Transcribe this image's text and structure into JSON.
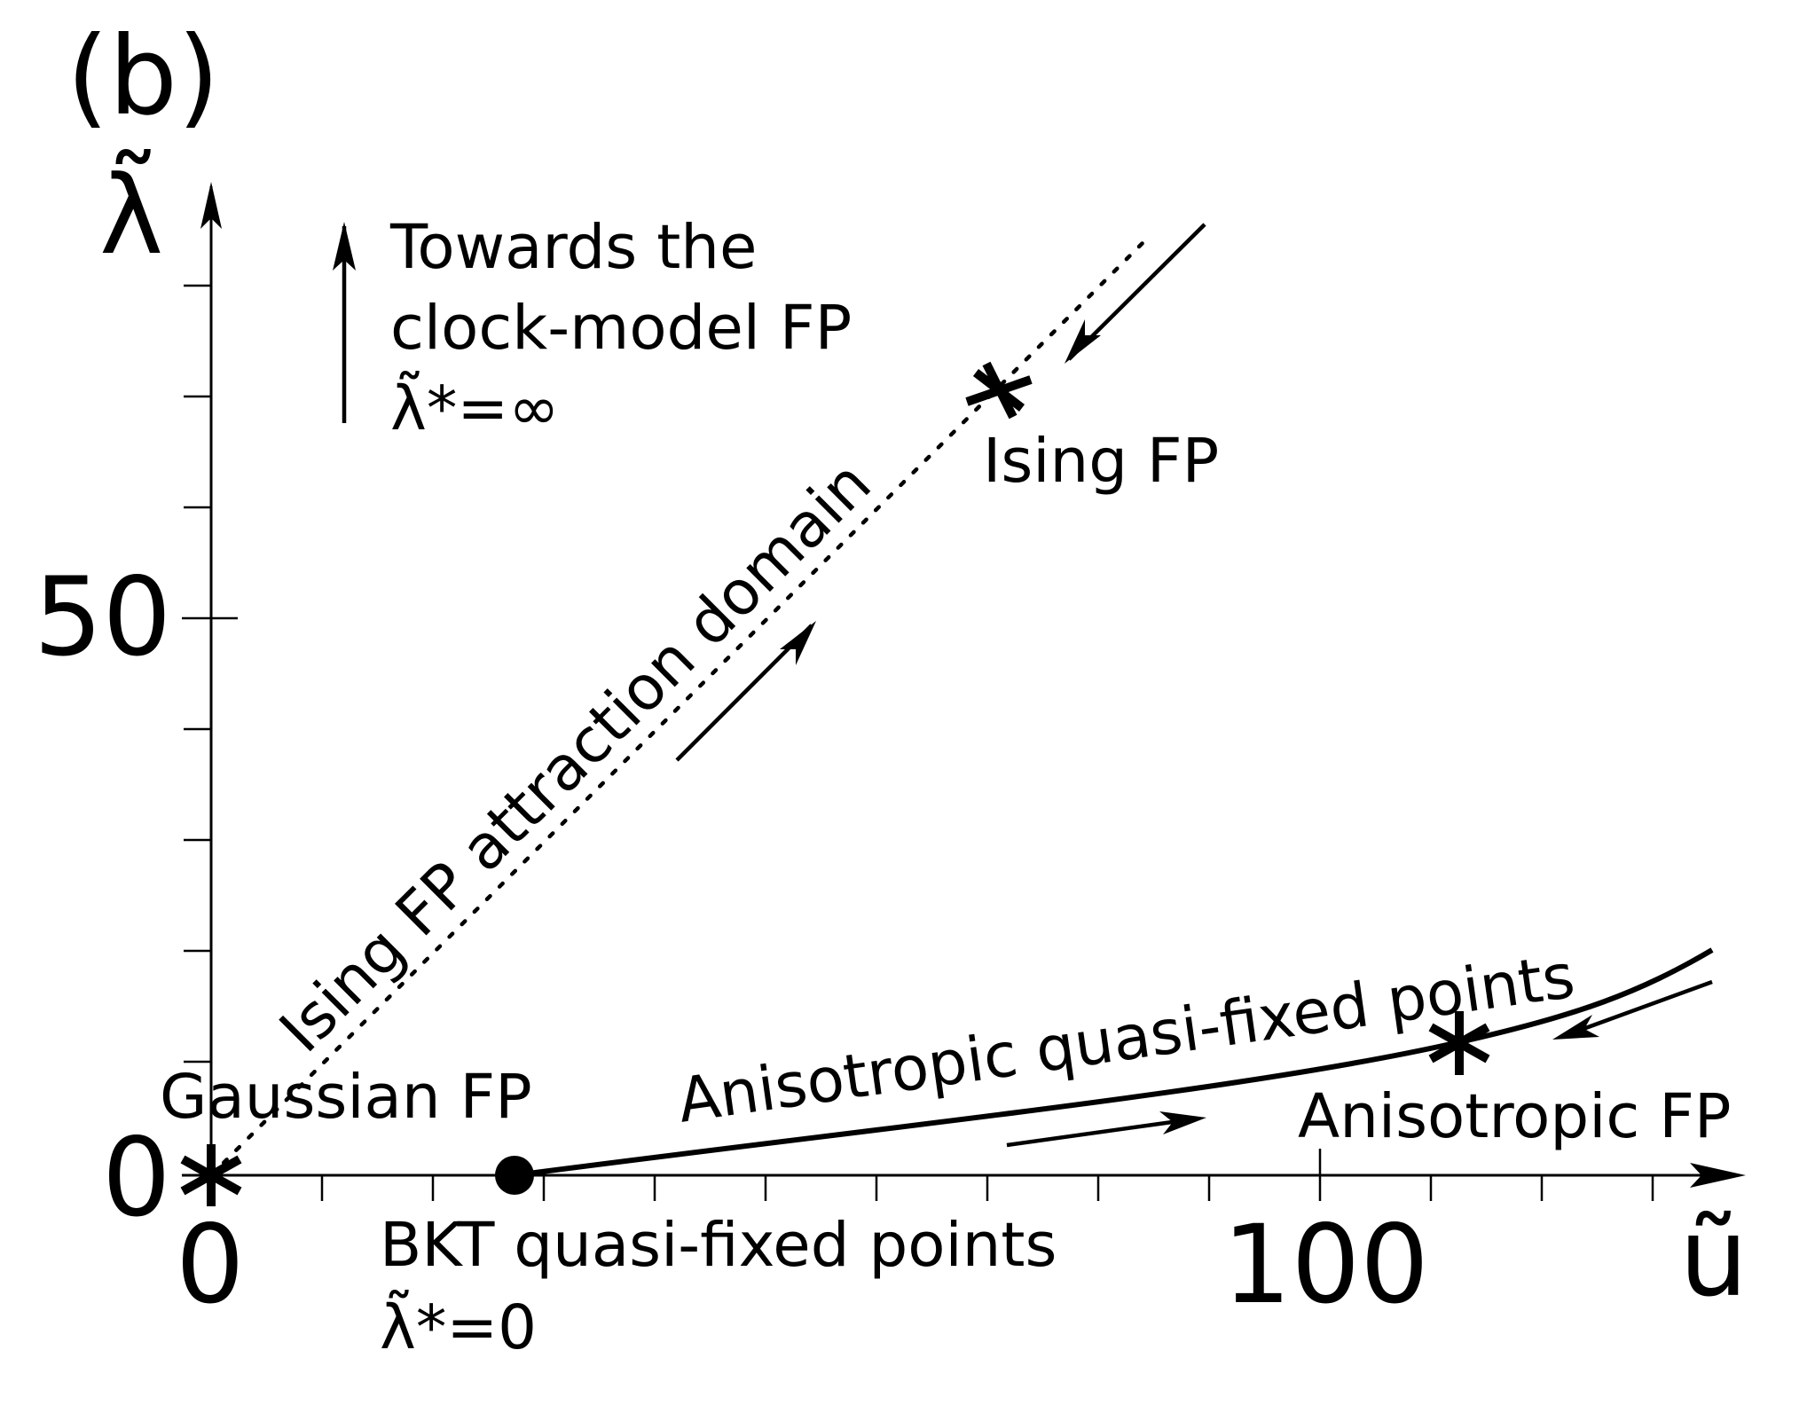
{
  "panel_label": "(b)",
  "axes": {
    "x_symbol": "ũ",
    "y_symbol": "λ̃",
    "x_ticks": [
      "0",
      "100"
    ],
    "y_ticks": [
      "0",
      "50"
    ],
    "x_range": [
      0,
      140
    ],
    "y_range": [
      0,
      80
    ]
  },
  "labels": {
    "towards_line1": "Towards the",
    "towards_line2": "clock-model FP",
    "towards_line3": "λ̃*=∞",
    "ising_fp": "Ising FP",
    "ising_domain": "Ising FP attraction domain",
    "gaussian_fp": "Gaussian FP",
    "bkt_line1": "BKT quasi-fixed points",
    "bkt_line2": "λ̃*=0",
    "aniso_quasi": "Anisotropic quasi-fixed points",
    "aniso_fp": "Anisotropic FP"
  },
  "colors": {
    "ink": "#000000",
    "background": "#ffffff"
  }
}
